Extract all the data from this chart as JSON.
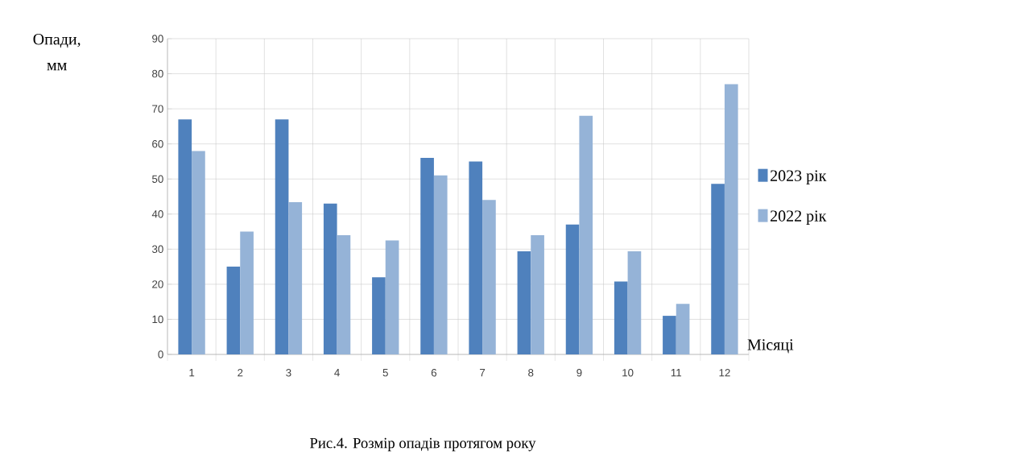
{
  "chart_data": {
    "type": "bar",
    "title": "Рис.4. Розмір  опадів протягом року",
    "xlabel": "Місяці",
    "ylabel": "Опади, мм",
    "categories": [
      "1",
      "2",
      "3",
      "4",
      "5",
      "6",
      "7",
      "8",
      "9",
      "10",
      "11",
      "12"
    ],
    "series": [
      {
        "name": "2023 рік",
        "color": "#4f81bd",
        "values": [
          67,
          25,
          67,
          43,
          22,
          56,
          55,
          29.4,
          37,
          20.8,
          11,
          48.6
        ]
      },
      {
        "name": "2022 рік",
        "color": "#95b3d7",
        "values": [
          58,
          35,
          43.4,
          34,
          32.5,
          51,
          44,
          34,
          68,
          29.4,
          14.4,
          77
        ]
      }
    ],
    "ylim": [
      0,
      90
    ],
    "yticks": [
      0,
      10,
      20,
      30,
      40,
      50,
      60,
      70,
      80,
      90
    ],
    "grid": true,
    "legend": "right"
  }
}
